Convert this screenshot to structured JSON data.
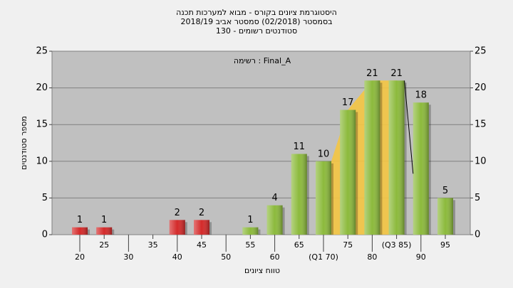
{
  "chart_data": {
    "type": "bar",
    "title": [
      "היסטוגרמת ציונים בקורס - מבוא למערכות תכנה",
      "בסמסטר  (02/2018)  סמסטר אביב 2018/19",
      "סטודנטים רשומים - 130"
    ],
    "annotation": "רשימה : Final_A",
    "xlabel": "טווח ציונים",
    "ylabel": "מספר סטודנטים",
    "categories": [
      "20",
      "25",
      "30",
      "35",
      "40",
      "45",
      "50",
      "55",
      "60",
      "65",
      "(Q1 70)",
      "75",
      "80",
      "(Q3 85)",
      "90",
      "95"
    ],
    "values": [
      1,
      1,
      0,
      0,
      2,
      2,
      0,
      1,
      4,
      11,
      10,
      17,
      21,
      21,
      18,
      5
    ],
    "colors": [
      "#d42a2a",
      "#d42a2a",
      "#d42a2a",
      "#d42a2a",
      "#d42a2a",
      "#d42a2a",
      "#d42a2a",
      "#8cba3c",
      "#8cba3c",
      "#8cba3c",
      "#8cba3c",
      "#8cba3c",
      "#8cba3c",
      "#8cba3c",
      "#8cba3c",
      "#8cba3c"
    ],
    "ylim": [
      0,
      25
    ],
    "yticks": [
      0,
      5,
      10,
      15,
      20,
      25
    ],
    "y2lim": [
      0,
      25
    ],
    "y2ticks": [
      0,
      5,
      10,
      15,
      20,
      25
    ],
    "grid": true
  }
}
